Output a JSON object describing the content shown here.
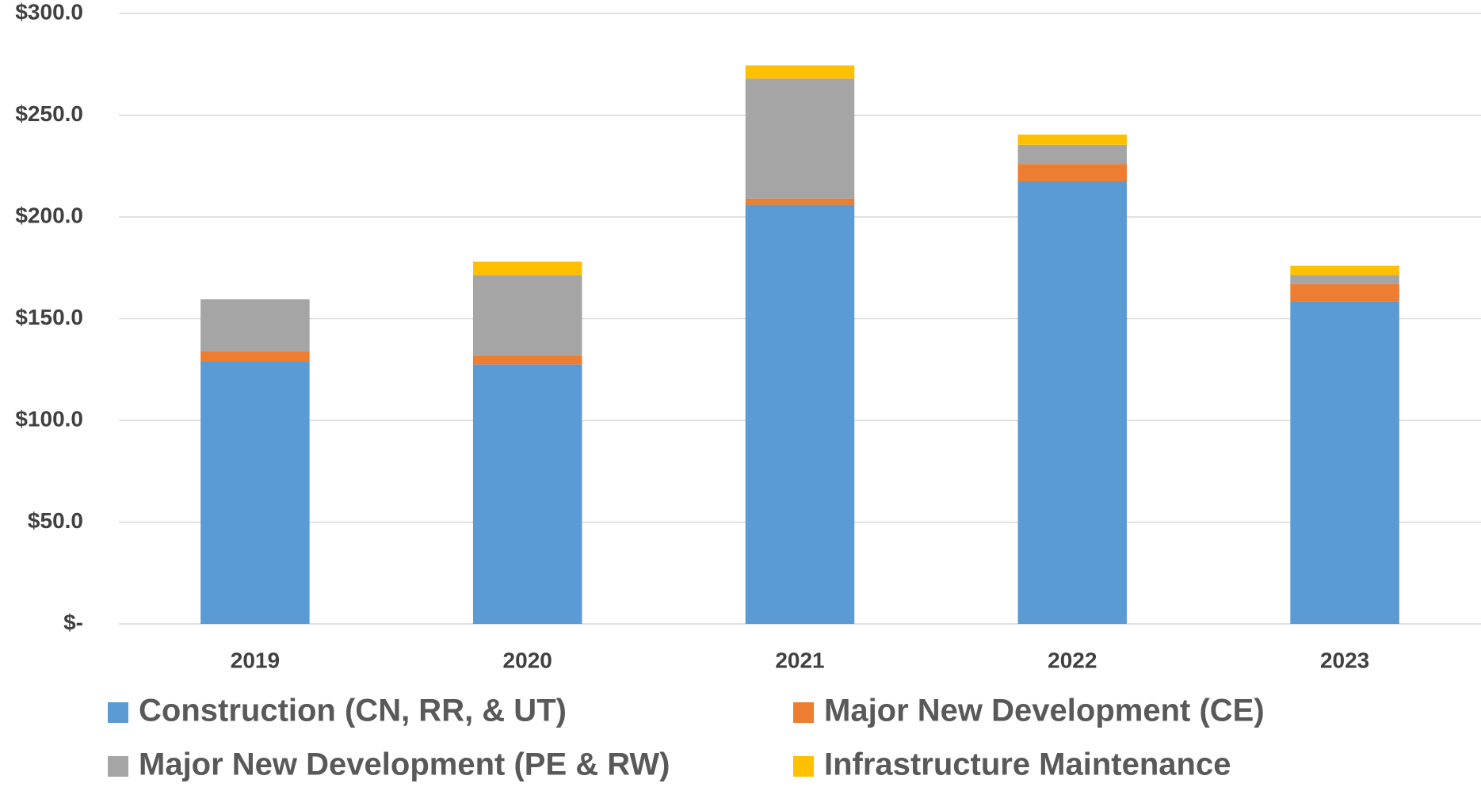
{
  "chart_data": {
    "type": "stacked_bar",
    "categories": [
      "2019",
      "2020",
      "2021",
      "2022",
      "2023"
    ],
    "series": [
      {
        "name": "Construction (CN, RR, & UT)",
        "color": "#5b9bd5",
        "values": [
          129,
          127.5,
          206,
          217.5,
          158.5
        ]
      },
      {
        "name": "Major New Development (CE)",
        "color": "#ed7d31",
        "values": [
          5,
          4.5,
          3,
          8.5,
          8.5
        ]
      },
      {
        "name": "Major New Development (PE & RW)",
        "color": "#a5a5a5",
        "values": [
          25.5,
          39.5,
          59,
          9.5,
          4.5
        ]
      },
      {
        "name": "Infrastructure Maintenance",
        "color": "#ffc000",
        "values": [
          0,
          6.5,
          6.5,
          5,
          4.5
        ]
      }
    ],
    "ylim": [
      0,
      300
    ],
    "yticks": [
      {
        "value": 0,
        "label": "$-"
      },
      {
        "value": 50,
        "label": "$50.0"
      },
      {
        "value": 100,
        "label": "$100.0"
      },
      {
        "value": 150,
        "label": "$150.0"
      },
      {
        "value": 200,
        "label": "$200.0"
      },
      {
        "value": 250,
        "label": "$250.0"
      },
      {
        "value": 300,
        "label": "$300.0"
      }
    ],
    "grid": true
  }
}
